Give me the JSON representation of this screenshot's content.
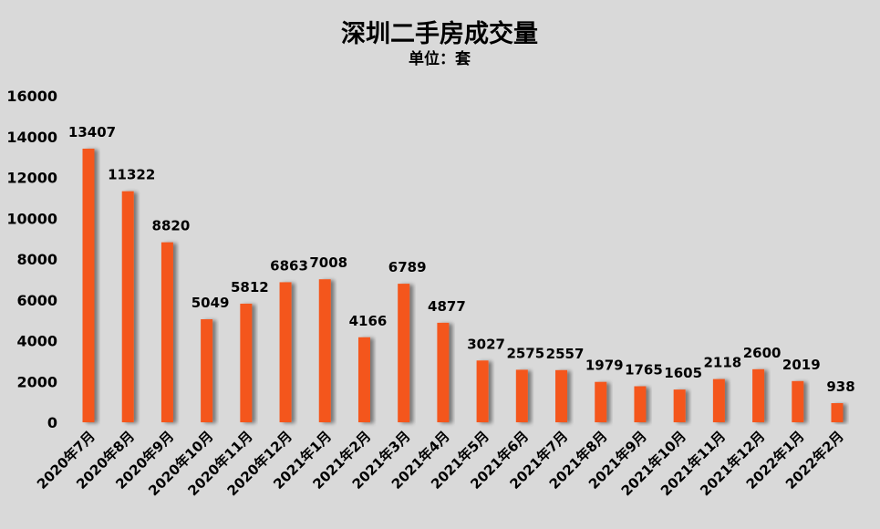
{
  "chart_data": {
    "type": "bar",
    "title": "深圳二手房成交量",
    "subtitle": "单位：套",
    "xlabel": "",
    "ylabel": "",
    "ylim": [
      0,
      16000
    ],
    "yticks": [
      0,
      2000,
      4000,
      6000,
      8000,
      10000,
      12000,
      14000,
      16000
    ],
    "grid": false,
    "legend": "none",
    "bar_color": "#f4561d",
    "background": "#d9d9d9",
    "categories": [
      "2020年7月",
      "2020年8月",
      "2020年9月",
      "2020年10月",
      "2020年11月",
      "2020年12月",
      "2021年1月",
      "2021年2月",
      "2021年3月",
      "2021年4月",
      "2021年5月",
      "2021年6月",
      "2021年7月",
      "2021年8月",
      "2021年9月",
      "2021年10月",
      "2021年11月",
      "2021年12月",
      "2022年1月",
      "2022年2月"
    ],
    "values": [
      13407,
      11322,
      8820,
      5049,
      5812,
      6863,
      7008,
      4166,
      6789,
      4877,
      3027,
      2575,
      2557,
      1979,
      1765,
      1605,
      2118,
      2600,
      2019,
      938
    ]
  }
}
